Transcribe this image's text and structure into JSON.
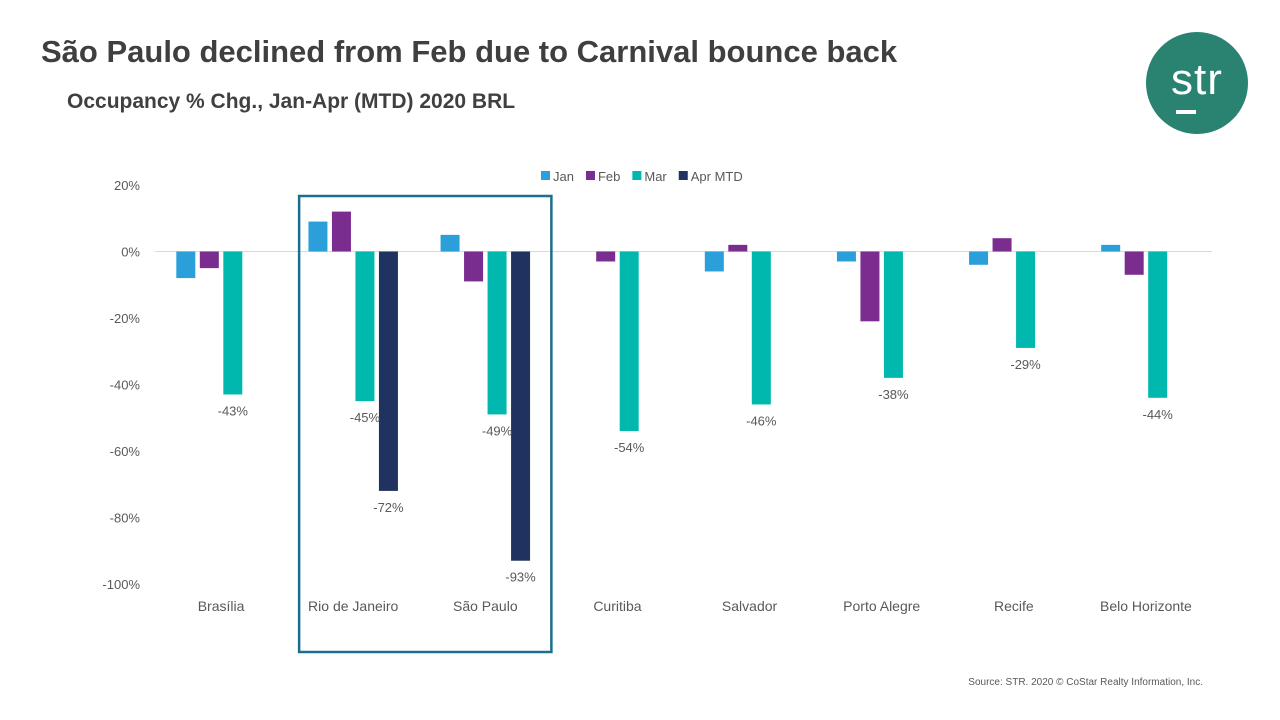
{
  "header": {
    "title": "São Paulo declined from Feb due to Carnival bounce back",
    "subtitle": "Occupancy % Chg., Jan-Apr (MTD) 2020  BRL"
  },
  "logo": {
    "text": "str"
  },
  "footer": {
    "source": "Source: STR. 2020 © CoStar Realty Information, Inc."
  },
  "chart_data": {
    "type": "bar",
    "title": "Occupancy % Chg., Jan-Apr (MTD) 2020  BRL",
    "xlabel": "",
    "ylabel": "",
    "ylim": [
      -100,
      20
    ],
    "yticks": [
      20,
      0,
      -20,
      -40,
      -60,
      -80,
      -100
    ],
    "grid": false,
    "legend_position": "top",
    "categories": [
      "Brasília",
      "Rio de Janeiro",
      "São Paulo",
      "Curitiba",
      "Salvador",
      "Porto Alegre",
      "Recife",
      "Belo Horizonte"
    ],
    "series": [
      {
        "name": "Jan",
        "color": "#2b9fda",
        "values": [
          -8,
          9,
          5,
          null,
          -6,
          -3,
          -4,
          2
        ]
      },
      {
        "name": "Feb",
        "color": "#7b2c8f",
        "values": [
          -5,
          12,
          -9,
          -3,
          2,
          -21,
          4,
          -7
        ]
      },
      {
        "name": "Mar",
        "color": "#00b8ad",
        "values": [
          -43,
          -45,
          -49,
          -54,
          -46,
          -38,
          -29,
          -44
        ]
      },
      {
        "name": "Apr MTD",
        "color": "#1f3260",
        "values": [
          null,
          -72,
          -93,
          null,
          null,
          null,
          null,
          null
        ]
      }
    ],
    "data_labels": [
      {
        "series": "Mar",
        "category": "Brasília",
        "text": "-43%"
      },
      {
        "series": "Mar",
        "category": "Rio de Janeiro",
        "text": "-45%"
      },
      {
        "series": "Apr MTD",
        "category": "Rio de Janeiro",
        "text": "-72%"
      },
      {
        "series": "Mar",
        "category": "São Paulo",
        "text": "-49%"
      },
      {
        "series": "Apr MTD",
        "category": "São Paulo",
        "text": "-93%"
      },
      {
        "series": "Mar",
        "category": "Curitiba",
        "text": "-54%"
      },
      {
        "series": "Mar",
        "category": "Salvador",
        "text": "-46%"
      },
      {
        "series": "Mar",
        "category": "Porto Alegre",
        "text": "-38%"
      },
      {
        "series": "Mar",
        "category": "Recife",
        "text": "-29%"
      },
      {
        "series": "Mar",
        "category": "Belo Horizonte",
        "text": "-44%"
      }
    ],
    "highlight": {
      "categories": [
        "Rio de Janeiro",
        "São Paulo"
      ],
      "color": "#1a6e8e"
    }
  }
}
